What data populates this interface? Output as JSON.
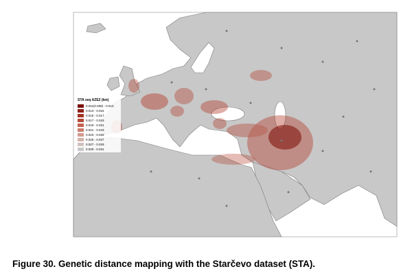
{
  "figure": {
    "caption": "Figure 30. Genetic distance mapping with the Starčevo dataset (STA).",
    "legend": {
      "title": "STA seq AZE2 (km)",
      "items": [
        {
          "label": "0.011(0.058) - 0.013",
          "color": "#7a0f08"
        },
        {
          "label": "0.013 - 0.015",
          "color": "#8e1f14"
        },
        {
          "label": "0.015 - 0.017",
          "color": "#a23222"
        },
        {
          "label": "0.017 - 0.019",
          "color": "#b44a38"
        },
        {
          "label": "0.019 - 0.021",
          "color": "#c26250"
        },
        {
          "label": "0.021 - 0.023",
          "color": "#cc7c6c"
        },
        {
          "label": "0.023 - 0.025",
          "color": "#d49a8e"
        },
        {
          "label": "0.025 - 0.027",
          "color": "#d4b2aa"
        },
        {
          "label": "0.027 - 0.029",
          "color": "#cfc2bf"
        },
        {
          "label": "0.029 - 0.031",
          "color": "#c8c8c8"
        }
      ]
    }
  }
}
